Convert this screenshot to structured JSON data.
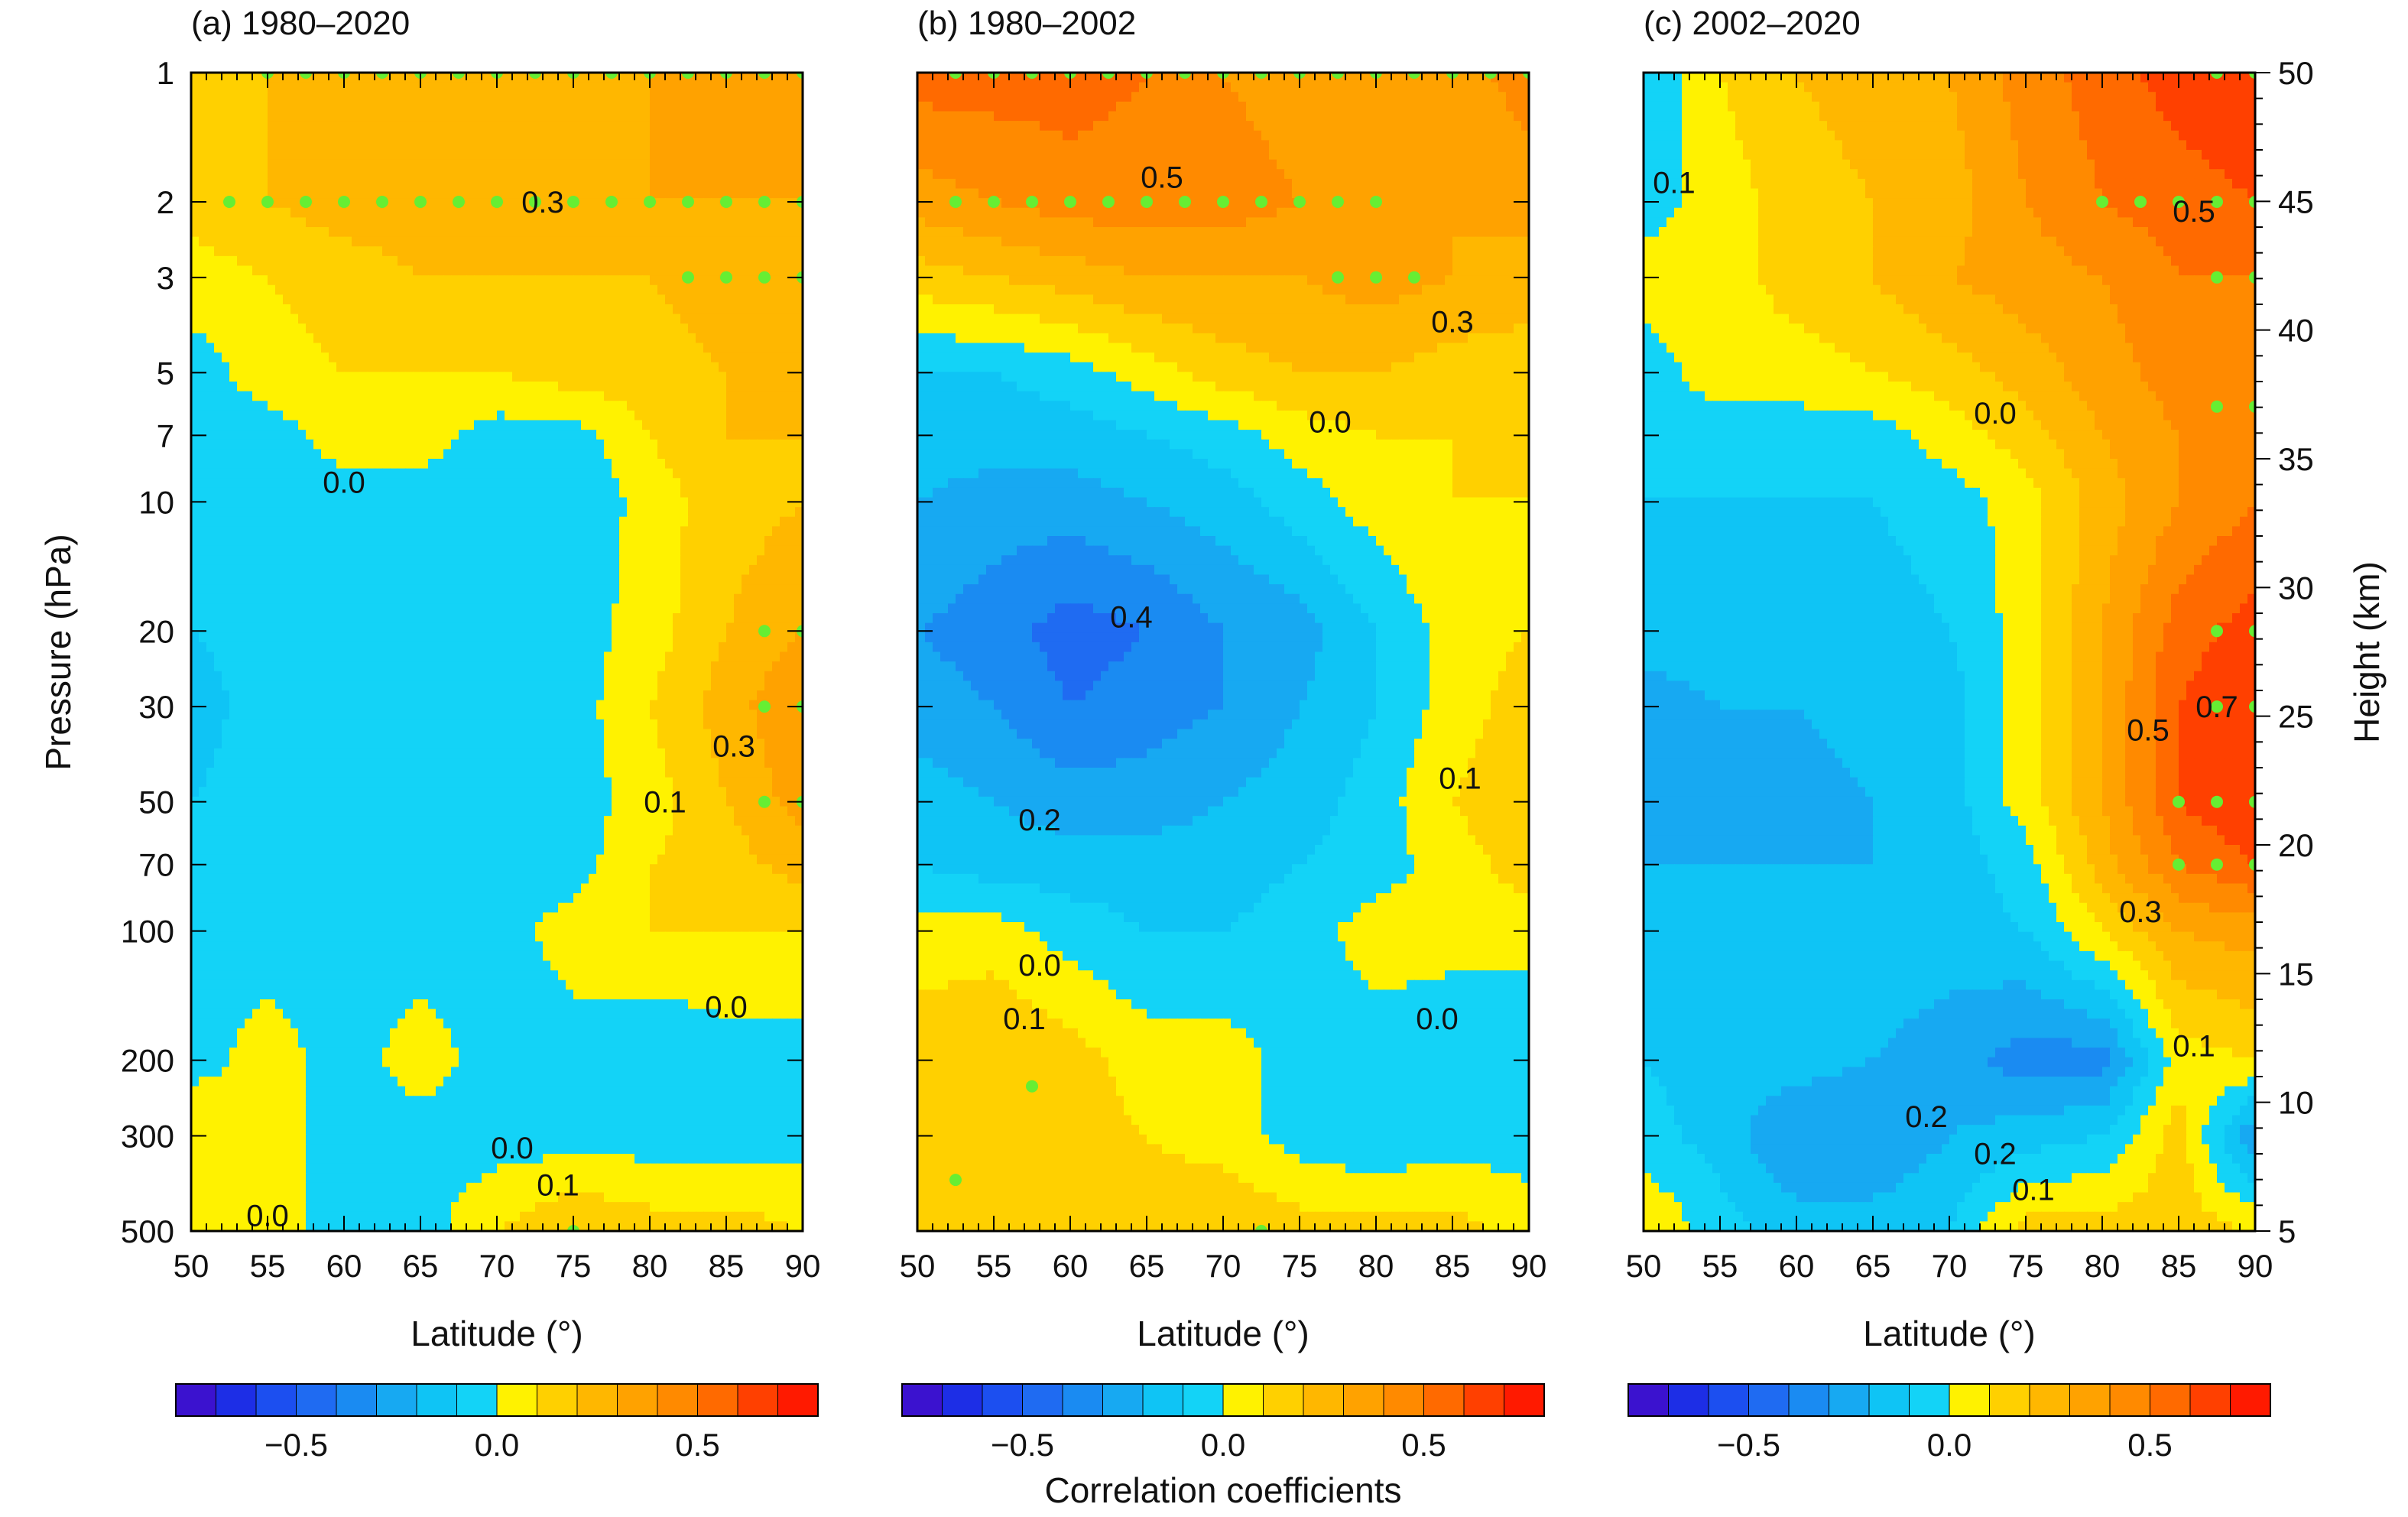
{
  "figure": {
    "ylabel_left": "Pressure (hPa)",
    "ylabel_right": "Height (km)",
    "colorbar_title": "Correlation coefficients",
    "colorbar": {
      "range": [
        -0.8,
        0.8
      ],
      "step": 0.1,
      "tick_values": [
        -0.5,
        0.0,
        0.5
      ],
      "tick_labels": [
        "−0.5",
        "0.0",
        "0.5"
      ],
      "colors": [
        "#3b12cf",
        "#1d2ee6",
        "#1c4ff0",
        "#1f6bf2",
        "#1a8bf2",
        "#17a9f2",
        "#0fc4f5",
        "#13d3f7",
        "#fff200",
        "#ffd000",
        "#ffb700",
        "#ffa200",
        "#ff8a00",
        "#ff6a00",
        "#ff4000",
        "#ff1a00"
      ]
    }
  },
  "chart_data": [
    {
      "type": "heatmap",
      "title": "(a) 1980–2020",
      "xlabel": "Latitude (°)",
      "ylabel": "Pressure (hPa)",
      "xlim": [
        50,
        90
      ],
      "ylim": [
        1,
        500
      ],
      "yscale": "log",
      "x": [
        50,
        55,
        60,
        65,
        70,
        75,
        80,
        85,
        90
      ],
      "y": [
        1,
        2,
        3,
        5,
        7,
        10,
        20,
        30,
        50,
        70,
        100,
        200,
        300,
        500
      ],
      "x_tick_labels": [
        "50",
        "55",
        "60",
        "65",
        "70",
        "75",
        "80",
        "85",
        "90"
      ],
      "y_tick_labels": [
        "1",
        "2",
        "3",
        "5",
        "7",
        "10",
        "20",
        "30",
        "50",
        "70",
        "100",
        "200",
        "300",
        "500"
      ],
      "values": [
        [
          0.2,
          0.2,
          0.25,
          0.25,
          0.25,
          0.25,
          0.3,
          0.3,
          0.3
        ],
        [
          0.15,
          0.2,
          0.25,
          0.25,
          0.3,
          0.3,
          0.3,
          0.3,
          0.3
        ],
        [
          0.05,
          0.1,
          0.15,
          0.2,
          0.2,
          0.2,
          0.2,
          0.25,
          0.3
        ],
        [
          -0.05,
          0.05,
          0.1,
          0.1,
          0.1,
          0.15,
          0.15,
          0.2,
          0.25
        ],
        [
          -0.05,
          -0.05,
          0.05,
          0.05,
          -0.05,
          -0.05,
          0.1,
          0.2,
          0.2
        ],
        [
          -0.05,
          -0.05,
          -0.05,
          -0.05,
          -0.1,
          -0.1,
          0.05,
          0.15,
          0.2
        ],
        [
          -0.1,
          -0.05,
          -0.05,
          -0.1,
          -0.1,
          -0.05,
          0.05,
          0.2,
          0.3
        ],
        [
          -0.15,
          -0.05,
          -0.05,
          -0.1,
          -0.05,
          -0.05,
          0.1,
          0.25,
          0.4
        ],
        [
          -0.1,
          -0.05,
          -0.1,
          -0.1,
          -0.05,
          -0.05,
          0.05,
          0.2,
          0.35
        ],
        [
          -0.05,
          -0.05,
          -0.1,
          -0.1,
          -0.05,
          -0.05,
          0.1,
          0.15,
          0.25
        ],
        [
          -0.05,
          -0.05,
          -0.05,
          -0.05,
          -0.05,
          0.05,
          0.1,
          0.1,
          0.1
        ],
        [
          -0.05,
          0.05,
          -0.05,
          0.05,
          -0.05,
          -0.05,
          -0.1,
          -0.05,
          -0.05
        ],
        [
          0.1,
          0.05,
          -0.05,
          -0.05,
          -0.05,
          -0.05,
          -0.05,
          -0.05,
          -0.05
        ],
        [
          0.05,
          0.05,
          -0.05,
          -0.05,
          0.1,
          0.2,
          0.15,
          0.15,
          0.1
        ]
      ],
      "significant_points": [
        [
          52.5,
          2
        ],
        [
          55,
          2
        ],
        [
          57.5,
          2
        ],
        [
          60,
          2
        ],
        [
          62.5,
          2
        ],
        [
          65,
          2
        ],
        [
          67.5,
          2
        ],
        [
          70,
          2
        ],
        [
          72.5,
          2
        ],
        [
          75,
          2
        ],
        [
          77.5,
          2
        ],
        [
          80,
          2
        ],
        [
          82.5,
          2
        ],
        [
          85,
          2
        ],
        [
          87.5,
          2
        ],
        [
          90,
          2
        ],
        [
          55,
          1
        ],
        [
          57.5,
          1
        ],
        [
          60,
          1
        ],
        [
          62.5,
          1
        ],
        [
          65,
          1
        ],
        [
          67.5,
          1
        ],
        [
          70,
          1
        ],
        [
          72.5,
          1
        ],
        [
          75,
          1
        ],
        [
          77.5,
          1
        ],
        [
          80,
          1
        ],
        [
          82.5,
          1
        ],
        [
          85,
          1
        ],
        [
          87.5,
          1
        ],
        [
          90,
          1
        ],
        [
          82.5,
          3
        ],
        [
          85,
          3
        ],
        [
          87.5,
          3
        ],
        [
          90,
          3
        ],
        [
          87.5,
          20
        ],
        [
          90,
          20
        ],
        [
          87.5,
          30
        ],
        [
          90,
          30
        ],
        [
          87.5,
          50
        ],
        [
          90,
          50
        ],
        [
          75,
          500
        ]
      ],
      "contour_labels": [
        {
          "text": "0.3",
          "x": 73,
          "y": 2
        },
        {
          "text": "0.0",
          "x": 60,
          "y": 9
        },
        {
          "text": "0.1",
          "x": 81,
          "y": 50
        },
        {
          "text": "0.3",
          "x": 85.5,
          "y": 37
        },
        {
          "text": "0.0",
          "x": 85,
          "y": 150
        },
        {
          "text": "0.0",
          "x": 71,
          "y": 320
        },
        {
          "text": "0.1",
          "x": 74,
          "y": 390
        },
        {
          "text": "0.0",
          "x": 55,
          "y": 460
        }
      ]
    },
    {
      "type": "heatmap",
      "title": "(b) 1980–2002",
      "xlabel": "Latitude (°)",
      "xlim": [
        50,
        90
      ],
      "ylim": [
        1,
        500
      ],
      "yscale": "log",
      "x": [
        50,
        55,
        60,
        65,
        70,
        75,
        80,
        85,
        90
      ],
      "y": [
        1,
        2,
        3,
        5,
        7,
        10,
        20,
        30,
        50,
        70,
        100,
        200,
        300,
        500
      ],
      "x_tick_labels": [
        "50",
        "55",
        "60",
        "65",
        "70",
        "75",
        "80",
        "85",
        "90"
      ],
      "values": [
        [
          0.55,
          0.55,
          0.55,
          0.5,
          0.4,
          0.35,
          0.4,
          0.35,
          0.45
        ],
        [
          0.35,
          0.4,
          0.45,
          0.45,
          0.45,
          0.4,
          0.35,
          0.3,
          0.35
        ],
        [
          0.15,
          0.2,
          0.25,
          0.3,
          0.3,
          0.3,
          0.35,
          0.3,
          0.25
        ],
        [
          -0.1,
          -0.1,
          -0.05,
          0.05,
          0.15,
          0.2,
          0.2,
          0.15,
          0.15
        ],
        [
          -0.15,
          -0.15,
          -0.15,
          -0.1,
          -0.05,
          0.05,
          0.1,
          0.1,
          0.1
        ],
        [
          -0.2,
          -0.25,
          -0.25,
          -0.2,
          -0.15,
          -0.05,
          0.05,
          0.1,
          0.1
        ],
        [
          -0.3,
          -0.35,
          -0.45,
          -0.4,
          -0.3,
          -0.25,
          -0.1,
          0.05,
          0.1
        ],
        [
          -0.25,
          -0.3,
          -0.4,
          -0.35,
          -0.3,
          -0.2,
          -0.1,
          0.05,
          0.15
        ],
        [
          -0.15,
          -0.2,
          -0.25,
          -0.25,
          -0.2,
          -0.15,
          -0.05,
          0.1,
          0.2
        ],
        [
          -0.1,
          -0.15,
          -0.15,
          -0.15,
          -0.15,
          -0.1,
          -0.05,
          0.05,
          0.15
        ],
        [
          0.05,
          0.05,
          -0.05,
          -0.1,
          -0.1,
          -0.05,
          0.05,
          0.05,
          0.05
        ],
        [
          0.15,
          0.2,
          0.15,
          0.05,
          0.05,
          -0.05,
          -0.05,
          -0.1,
          -0.1
        ],
        [
          0.1,
          0.15,
          0.15,
          0.1,
          0.05,
          -0.05,
          -0.1,
          -0.05,
          -0.05
        ],
        [
          0.15,
          0.1,
          0.15,
          0.15,
          0.2,
          0.15,
          0.15,
          0.15,
          0.05
        ]
      ],
      "significant_points": [
        [
          52.5,
          1
        ],
        [
          55,
          1
        ],
        [
          57.5,
          1
        ],
        [
          60,
          1
        ],
        [
          62.5,
          1
        ],
        [
          65,
          1
        ],
        [
          67.5,
          1
        ],
        [
          70,
          1
        ],
        [
          72.5,
          1
        ],
        [
          75,
          1
        ],
        [
          77.5,
          1
        ],
        [
          80,
          1
        ],
        [
          82.5,
          1
        ],
        [
          85,
          1
        ],
        [
          87.5,
          1
        ],
        [
          90,
          1
        ],
        [
          52.5,
          2
        ],
        [
          55,
          2
        ],
        [
          57.5,
          2
        ],
        [
          60,
          2
        ],
        [
          62.5,
          2
        ],
        [
          65,
          2
        ],
        [
          67.5,
          2
        ],
        [
          70,
          2
        ],
        [
          72.5,
          2
        ],
        [
          75,
          2
        ],
        [
          77.5,
          2
        ],
        [
          80,
          2
        ],
        [
          77.5,
          3
        ],
        [
          80,
          3
        ],
        [
          82.5,
          3
        ],
        [
          57.5,
          230
        ],
        [
          52.5,
          380
        ],
        [
          72.5,
          500
        ]
      ],
      "contour_labels": [
        {
          "text": "0.5",
          "x": 66,
          "y": 1.75
        },
        {
          "text": "0.3",
          "x": 85,
          "y": 3.8
        },
        {
          "text": "0.0",
          "x": 77,
          "y": 6.5
        },
        {
          "text": "0.4",
          "x": 64,
          "y": 18.5
        },
        {
          "text": "0.2",
          "x": 58,
          "y": 55
        },
        {
          "text": "0.1",
          "x": 85.5,
          "y": 44
        },
        {
          "text": "0.0",
          "x": 58,
          "y": 120
        },
        {
          "text": "0.1",
          "x": 57,
          "y": 160
        },
        {
          "text": "0.0",
          "x": 84,
          "y": 160
        }
      ]
    },
    {
      "type": "heatmap",
      "title": "(c) 2002–2020",
      "xlabel": "Latitude (°)",
      "y2label": "Height (km)",
      "xlim": [
        50,
        90
      ],
      "ylim": [
        1,
        500
      ],
      "yscale": "log",
      "y2lim": [
        5,
        50
      ],
      "y2_ticks": [
        5,
        10,
        15,
        20,
        25,
        30,
        35,
        40,
        45,
        50
      ],
      "x": [
        50,
        55,
        60,
        65,
        70,
        75,
        80,
        85,
        90
      ],
      "y": [
        1,
        2,
        3,
        5,
        7,
        10,
        20,
        30,
        50,
        70,
        100,
        200,
        300,
        500
      ],
      "x_tick_labels": [
        "50",
        "55",
        "60",
        "65",
        "70",
        "75",
        "80",
        "85",
        "90"
      ],
      "y2_tick_labels": [
        "5",
        "10",
        "15",
        "20",
        "25",
        "30",
        "35",
        "40",
        "45",
        "50"
      ],
      "values": [
        [
          -0.1,
          0.1,
          0.2,
          0.25,
          0.3,
          0.45,
          0.55,
          0.65,
          0.7
        ],
        [
          -0.05,
          0.05,
          0.15,
          0.2,
          0.25,
          0.4,
          0.5,
          0.55,
          0.6
        ],
        [
          0.05,
          0.05,
          0.15,
          0.2,
          0.3,
          0.35,
          0.4,
          0.5,
          0.5
        ],
        [
          -0.05,
          0.05,
          0.05,
          0.1,
          0.15,
          0.25,
          0.35,
          0.45,
          0.45
        ],
        [
          -0.05,
          -0.05,
          -0.05,
          -0.05,
          0.05,
          0.15,
          0.3,
          0.4,
          0.45
        ],
        [
          -0.1,
          -0.1,
          -0.1,
          -0.1,
          -0.05,
          0.05,
          0.25,
          0.4,
          0.5
        ],
        [
          -0.15,
          -0.15,
          -0.15,
          -0.15,
          -0.1,
          0.05,
          0.3,
          0.55,
          0.65
        ],
        [
          -0.25,
          -0.2,
          -0.2,
          -0.15,
          -0.15,
          0.05,
          0.3,
          0.6,
          0.7
        ],
        [
          -0.3,
          -0.25,
          -0.25,
          -0.2,
          -0.15,
          0.05,
          0.3,
          0.6,
          0.7
        ],
        [
          -0.2,
          -0.2,
          -0.2,
          -0.2,
          -0.15,
          -0.05,
          0.25,
          0.5,
          0.6
        ],
        [
          -0.1,
          -0.15,
          -0.2,
          -0.15,
          -0.15,
          -0.1,
          0.1,
          0.3,
          0.35
        ],
        [
          -0.1,
          -0.15,
          -0.15,
          -0.2,
          -0.25,
          -0.35,
          -0.35,
          0.05,
          0.1
        ],
        [
          -0.05,
          -0.15,
          -0.3,
          -0.3,
          -0.2,
          -0.15,
          -0.1,
          0.15,
          -0.3
        ],
        [
          0.1,
          -0.05,
          -0.15,
          -0.15,
          -0.1,
          0.15,
          0.15,
          0.15,
          0.1
        ]
      ],
      "significant_points": [
        [
          85,
          2
        ],
        [
          87.5,
          2
        ],
        [
          90,
          2
        ],
        [
          82.5,
          2
        ],
        [
          80,
          2
        ],
        [
          87.5,
          1
        ],
        [
          90,
          1
        ],
        [
          87.5,
          3
        ],
        [
          90,
          3
        ],
        [
          87.5,
          6
        ],
        [
          90,
          6
        ],
        [
          87.5,
          20
        ],
        [
          90,
          20
        ],
        [
          87.5,
          30
        ],
        [
          90,
          30
        ],
        [
          85,
          50
        ],
        [
          87.5,
          50
        ],
        [
          90,
          50
        ],
        [
          85,
          70
        ],
        [
          87.5,
          70
        ],
        [
          90,
          70
        ]
      ],
      "contour_labels": [
        {
          "text": "0.1",
          "x": 52,
          "y": 1.8
        },
        {
          "text": "0.5",
          "x": 86,
          "y": 2.1
        },
        {
          "text": "0.0",
          "x": 73,
          "y": 6.2
        },
        {
          "text": "0.7",
          "x": 87.5,
          "y": 30
        },
        {
          "text": "0.5",
          "x": 83,
          "y": 34
        },
        {
          "text": "0.3",
          "x": 82.5,
          "y": 90
        },
        {
          "text": "0.1",
          "x": 86,
          "y": 185
        },
        {
          "text": "0.2",
          "x": 68.5,
          "y": 270
        },
        {
          "text": "0.2",
          "x": 73,
          "y": 330
        },
        {
          "text": "0.1",
          "x": 75.5,
          "y": 400
        }
      ]
    }
  ]
}
